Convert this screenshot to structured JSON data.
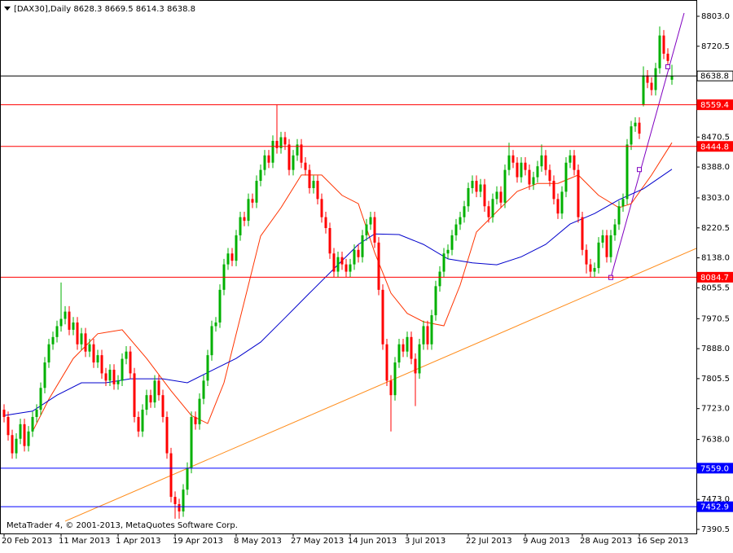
{
  "chart_data": {
    "type": "candlestick",
    "symbol": "[DAX30],Daily",
    "footer": "MetaTrader 4, © 2001-2013, MetaQuotes Software Corp.",
    "up_color": "#00b000",
    "down_color": "#ff0000",
    "xlim": [
      -1,
      170
    ],
    "ylim": [
      7379.3,
      8847.8
    ],
    "xticks": [
      {
        "value": 0,
        "label": "20 Feb 2013"
      },
      {
        "value": 14,
        "label": "11 Mar 2013"
      },
      {
        "value": 28,
        "label": "1 Apr 2013"
      },
      {
        "value": 42,
        "label": "19 Apr 2013"
      },
      {
        "value": 57,
        "label": "8 May 2013"
      },
      {
        "value": 71,
        "label": "27 May 2013"
      },
      {
        "value": 85,
        "label": "14 Jun 2013"
      },
      {
        "value": 99,
        "label": "3 Jul 2013"
      },
      {
        "value": 114,
        "label": "22 Jul 2013"
      },
      {
        "value": 128,
        "label": "9 Aug 2013"
      },
      {
        "value": 142,
        "label": "28 Aug 2013"
      },
      {
        "value": 156,
        "label": "16 Sep 2013"
      }
    ],
    "yticks": [
      {
        "value": 8803,
        "label": "8803.0"
      },
      8720.5,
      8470.5,
      {
        "value": 8388,
        "label": "8388.0"
      },
      {
        "value": 8303,
        "label": "8303.0"
      },
      8220.5,
      {
        "value": 8138,
        "label": "8138.0"
      },
      8055.5,
      7970.5,
      {
        "value": 7888,
        "label": "7888.0"
      },
      7805.5,
      {
        "value": 7723,
        "label": "7723.0"
      },
      {
        "value": 7638,
        "label": "7638.0"
      },
      {
        "value": 7473,
        "label": "7473.0"
      },
      7390.5
    ],
    "ohlc": [
      [
        7720,
        7735,
        7685,
        7700
      ],
      [
        7700,
        7715,
        7635,
        7650
      ],
      [
        7650,
        7665,
        7585,
        7600
      ],
      [
        7600,
        7655,
        7585,
        7640
      ],
      [
        7640,
        7695,
        7625,
        7680
      ],
      [
        7680,
        7695,
        7605,
        7620
      ],
      [
        7620,
        7675,
        7605,
        7660
      ],
      [
        7660,
        7715,
        7645,
        7700
      ],
      [
        7700,
        7735,
        7685,
        7720
      ],
      [
        7720,
        7795,
        7705,
        7780
      ],
      [
        7780,
        7865,
        7765,
        7850
      ],
      [
        7850,
        7915,
        7835,
        7900
      ],
      [
        7900,
        7935,
        7885,
        7920
      ],
      [
        7920,
        7965,
        7905,
        7950
      ],
      [
        7950,
        8070,
        7935,
        7970
      ],
      [
        7970,
        8005,
        7955,
        7990
      ],
      [
        7990,
        8005,
        7925,
        7940
      ],
      [
        7940,
        7975,
        7925,
        7960
      ],
      [
        7960,
        7975,
        7885,
        7900
      ],
      [
        7900,
        7945,
        7885,
        7930
      ],
      [
        7930,
        7945,
        7865,
        7880
      ],
      [
        7880,
        7915,
        7865,
        7900
      ],
      [
        7900,
        7915,
        7835,
        7850
      ],
      [
        7850,
        7885,
        7835,
        7870
      ],
      [
        7870,
        7885,
        7805,
        7820
      ],
      [
        7820,
        7835,
        7785,
        7800
      ],
      [
        7800,
        7845,
        7785,
        7830
      ],
      [
        7830,
        7845,
        7775,
        7790
      ],
      [
        7790,
        7815,
        7775,
        7800
      ],
      [
        7800,
        7875,
        7785,
        7860
      ],
      [
        7860,
        7895,
        7845,
        7880
      ],
      [
        7880,
        7895,
        7805,
        7820
      ],
      [
        7820,
        7835,
        7685,
        7700
      ],
      [
        7700,
        7715,
        7645,
        7660
      ],
      [
        7660,
        7735,
        7645,
        7720
      ],
      [
        7720,
        7775,
        7705,
        7760
      ],
      [
        7760,
        7775,
        7725,
        7740
      ],
      [
        7740,
        7815,
        7725,
        7800
      ],
      [
        7800,
        7815,
        7745,
        7760
      ],
      [
        7760,
        7775,
        7685,
        7700
      ],
      [
        7700,
        7715,
        7585,
        7600
      ],
      [
        7600,
        7615,
        7465,
        7480
      ],
      [
        7480,
        7495,
        7420,
        7460
      ],
      [
        7460,
        7475,
        7420,
        7440
      ],
      [
        7440,
        7515,
        7425,
        7500
      ],
      [
        7500,
        7575,
        7485,
        7560
      ],
      [
        7560,
        7715,
        7545,
        7700
      ],
      [
        7700,
        7715,
        7665,
        7680
      ],
      [
        7680,
        7765,
        7665,
        7750
      ],
      [
        7750,
        7815,
        7735,
        7800
      ],
      [
        7800,
        7885,
        7785,
        7870
      ],
      [
        7870,
        7965,
        7855,
        7950
      ],
      [
        7950,
        7975,
        7935,
        7960
      ],
      [
        7960,
        8065,
        7945,
        8050
      ],
      [
        8050,
        8135,
        8035,
        8120
      ],
      [
        8120,
        8165,
        8105,
        8150
      ],
      [
        8150,
        8165,
        8115,
        8130
      ],
      [
        8130,
        8215,
        8115,
        8200
      ],
      [
        8200,
        8265,
        8185,
        8250
      ],
      [
        8250,
        8265,
        8225,
        8240
      ],
      [
        8240,
        8315,
        8225,
        8300
      ],
      [
        8300,
        8315,
        8275,
        8290
      ],
      [
        8290,
        8365,
        8275,
        8350
      ],
      [
        8350,
        8395,
        8335,
        8380
      ],
      [
        8380,
        8435,
        8365,
        8420
      ],
      [
        8420,
        8435,
        8385,
        8400
      ],
      [
        8400,
        8475,
        8385,
        8460
      ],
      [
        8460,
        8560,
        8425,
        8440
      ],
      [
        8440,
        8485,
        8425,
        8470
      ],
      [
        8470,
        8485,
        8435,
        8450
      ],
      [
        8450,
        8465,
        8365,
        8380
      ],
      [
        8380,
        8435,
        8365,
        8420
      ],
      [
        8420,
        8465,
        8405,
        8450
      ],
      [
        8450,
        8465,
        8385,
        8400
      ],
      [
        8400,
        8415,
        8365,
        8380
      ],
      [
        8380,
        8395,
        8315,
        8330
      ],
      [
        8330,
        8365,
        8315,
        8350
      ],
      [
        8350,
        8365,
        8285,
        8300
      ],
      [
        8300,
        8315,
        8235,
        8250
      ],
      [
        8250,
        8265,
        8205,
        8220
      ],
      [
        8220,
        8235,
        8135,
        8150
      ],
      [
        8150,
        8165,
        8085,
        8100
      ],
      [
        8100,
        8155,
        8085,
        8140
      ],
      [
        8140,
        8155,
        8105,
        8120
      ],
      [
        8120,
        8135,
        8085,
        8100
      ],
      [
        8100,
        8135,
        8085,
        8120
      ],
      [
        8120,
        8175,
        8105,
        8160
      ],
      [
        8160,
        8175,
        8125,
        8140
      ],
      [
        8140,
        8215,
        8125,
        8200
      ],
      [
        8200,
        8245,
        8185,
        8230
      ],
      [
        8230,
        8265,
        8215,
        8250
      ],
      [
        8250,
        8265,
        8165,
        8180
      ],
      [
        8180,
        8195,
        8035,
        8050
      ],
      [
        8050,
        8065,
        7885,
        7900
      ],
      [
        7900,
        7915,
        7785,
        7800
      ],
      [
        7800,
        7815,
        7660,
        7760
      ],
      [
        7760,
        7865,
        7745,
        7850
      ],
      [
        7850,
        7915,
        7835,
        7900
      ],
      [
        7900,
        7915,
        7865,
        7880
      ],
      [
        7880,
        7935,
        7865,
        7920
      ],
      [
        7920,
        7935,
        7845,
        7860
      ],
      [
        7860,
        7875,
        7730,
        7820
      ],
      [
        7820,
        7915,
        7805,
        7900
      ],
      [
        7900,
        7965,
        7885,
        7950
      ],
      [
        7950,
        7965,
        7885,
        7900
      ],
      [
        7900,
        7995,
        7885,
        7980
      ],
      [
        7980,
        8075,
        7965,
        8060
      ],
      [
        8060,
        8115,
        8045,
        8100
      ],
      [
        8100,
        8165,
        8085,
        8150
      ],
      [
        8150,
        8175,
        8135,
        8160
      ],
      [
        8160,
        8215,
        8145,
        8200
      ],
      [
        8200,
        8245,
        8185,
        8230
      ],
      [
        8230,
        8265,
        8215,
        8250
      ],
      [
        8250,
        8295,
        8235,
        8280
      ],
      [
        8280,
        8345,
        8265,
        8330
      ],
      [
        8330,
        8365,
        8315,
        8350
      ],
      [
        8350,
        8365,
        8305,
        8320
      ],
      [
        8320,
        8355,
        8305,
        8340
      ],
      [
        8340,
        8355,
        8265,
        8280
      ],
      [
        8280,
        8295,
        8235,
        8250
      ],
      [
        8250,
        8315,
        8235,
        8300
      ],
      [
        8300,
        8335,
        8285,
        8320
      ],
      [
        8320,
        8335,
        8275,
        8290
      ],
      [
        8290,
        8395,
        8275,
        8380
      ],
      [
        8380,
        8455,
        8365,
        8420
      ],
      [
        8420,
        8435,
        8385,
        8400
      ],
      [
        8400,
        8415,
        8345,
        8360
      ],
      [
        8360,
        8415,
        8345,
        8400
      ],
      [
        8400,
        8415,
        8365,
        8380
      ],
      [
        8380,
        8395,
        8325,
        8340
      ],
      [
        8340,
        8375,
        8325,
        8360
      ],
      [
        8360,
        8405,
        8345,
        8390
      ],
      [
        8390,
        8450,
        8375,
        8420
      ],
      [
        8420,
        8435,
        8365,
        8380
      ],
      [
        8380,
        8395,
        8335,
        8350
      ],
      [
        8350,
        8365,
        8285,
        8300
      ],
      [
        8300,
        8315,
        8245,
        8260
      ],
      [
        8260,
        8335,
        8245,
        8320
      ],
      [
        8320,
        8415,
        8305,
        8400
      ],
      [
        8400,
        8435,
        8385,
        8420
      ],
      [
        8420,
        8435,
        8365,
        8380
      ],
      [
        8380,
        8395,
        8235,
        8250
      ],
      [
        8250,
        8265,
        8145,
        8160
      ],
      [
        8160,
        8175,
        8095,
        8120
      ],
      [
        8120,
        8135,
        8085,
        8100
      ],
      [
        8100,
        8125,
        8085,
        8110
      ],
      [
        8110,
        8195,
        8095,
        8180
      ],
      [
        8180,
        8215,
        8165,
        8200
      ],
      [
        8200,
        8215,
        8125,
        8140
      ],
      [
        8140,
        8215,
        8125,
        8200
      ],
      [
        8200,
        8245,
        8185,
        8230
      ],
      [
        8230,
        8295,
        8215,
        8280
      ],
      [
        8280,
        8315,
        8265,
        8300
      ],
      [
        8300,
        8465,
        8285,
        8450
      ],
      [
        8450,
        8515,
        8435,
        8500
      ],
      [
        8500,
        8525,
        8485,
        8510
      ],
      [
        8510,
        8525,
        8465,
        8480
      ],
      [
        8560,
        8665,
        8555,
        8640
      ],
      [
        8640,
        8655,
        8605,
        8620
      ],
      [
        8620,
        8635,
        8585,
        8600
      ],
      [
        8600,
        8675,
        8585,
        8660
      ],
      [
        8660,
        8775,
        8645,
        8750
      ],
      [
        8750,
        8765,
        8685,
        8700
      ],
      [
        8700,
        8715,
        8665,
        8680
      ],
      [
        8628.3,
        8669.5,
        8614.3,
        8638.8
      ]
    ],
    "series": [
      {
        "color": "#ff3300",
        "x": [
          7,
          11,
          17,
          23,
          29,
          35,
          41,
          46,
          50,
          54,
          59,
          63,
          68,
          73,
          78,
          83,
          87,
          91,
          95,
          99,
          103,
          108,
          112,
          116,
          121,
          126,
          131,
          136,
          141,
          146,
          151,
          154,
          159,
          164
        ],
        "values": [
          7660,
          7749,
          7861,
          7929,
          7940,
          7861,
          7772,
          7704,
          7682,
          7794,
          8018,
          8198,
          8276,
          8366,
          8366,
          8310,
          8287,
          8153,
          8041,
          7985,
          7962,
          7951,
          8063,
          8209,
          8265,
          8321,
          8343,
          8343,
          8366,
          8310,
          8276,
          8287,
          8366,
          8455
        ]
      },
      {
        "color": "#0000cc",
        "x": [
          0,
          7,
          13,
          19,
          25,
          31,
          39,
          45,
          51,
          57,
          63,
          69,
          75,
          81,
          87,
          91,
          97,
          103,
          109,
          115,
          121,
          127,
          133,
          139,
          145,
          151,
          157,
          164
        ],
        "values": [
          7704,
          7716,
          7760,
          7794,
          7794,
          7805,
          7805,
          7794,
          7828,
          7861,
          7906,
          7973,
          8041,
          8108,
          8175,
          8204,
          8202,
          8175,
          8135,
          8124,
          8119,
          8141,
          8175,
          8231,
          8260,
          8298,
          8328,
          8382
        ]
      }
    ],
    "levels": [
      {
        "value": 8638.8,
        "color": "#000000"
      },
      {
        "value": 8559.4,
        "color": "#ff0000"
      },
      {
        "value": 8444.8,
        "color": "#ff0000"
      },
      {
        "value": 8084.7,
        "color": "#ff0000"
      },
      {
        "value": 7559,
        "label": "7559.0",
        "color": "#0000ff"
      },
      {
        "value": 7452.9,
        "color": "#0000ff"
      }
    ],
    "lines": [
      {
        "color": "#ff8c1a",
        "points": [
          [
            15,
            7413
          ],
          [
            170,
            8164
          ]
        ]
      },
      {
        "color": "#8000c0",
        "points": [
          [
            149,
            8084
          ],
          [
            167,
            8812
          ]
        ]
      }
    ],
    "markers": {
      "color": "#8000c0",
      "points": [
        [
          149,
          8084
        ],
        [
          156,
          8381
        ],
        [
          163,
          8664
        ]
      ]
    }
  }
}
